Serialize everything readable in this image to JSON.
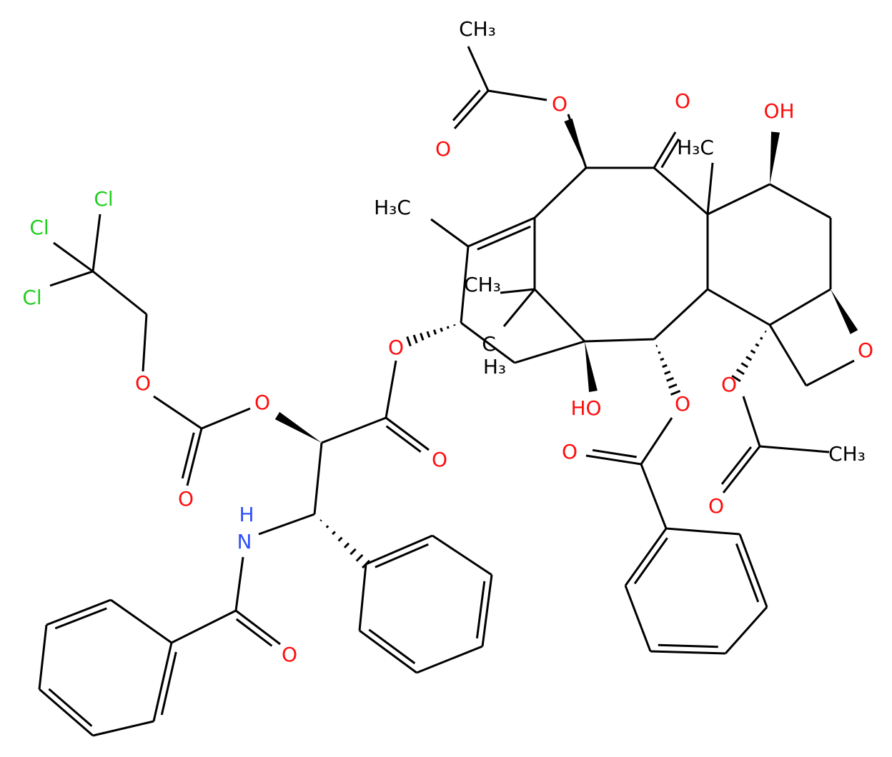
{
  "atoms": [
    {
      "label": "CH₃"
    },
    {
      "label": "O"
    },
    {
      "label": "O"
    },
    {
      "label": "O"
    },
    {
      "label": "OH"
    },
    {
      "label": "H₃C"
    },
    {
      "label": "H₃C"
    },
    {
      "label": "Cl"
    },
    {
      "label": "Cl"
    },
    {
      "label": "Cl"
    },
    {
      "label": "CH₃"
    },
    {
      "label": "O"
    },
    {
      "label": "O"
    },
    {
      "label": "C"
    },
    {
      "label": "H₃"
    },
    {
      "label": "O"
    },
    {
      "label": "O"
    },
    {
      "label": "HO"
    },
    {
      "label": "O"
    },
    {
      "label": "O"
    },
    {
      "label": "O"
    },
    {
      "label": "O"
    },
    {
      "label": "CH₃"
    },
    {
      "label": "O"
    },
    {
      "label": "O"
    },
    {
      "label": "H"
    },
    {
      "label": "N"
    },
    {
      "label": "O"
    }
  ]
}
